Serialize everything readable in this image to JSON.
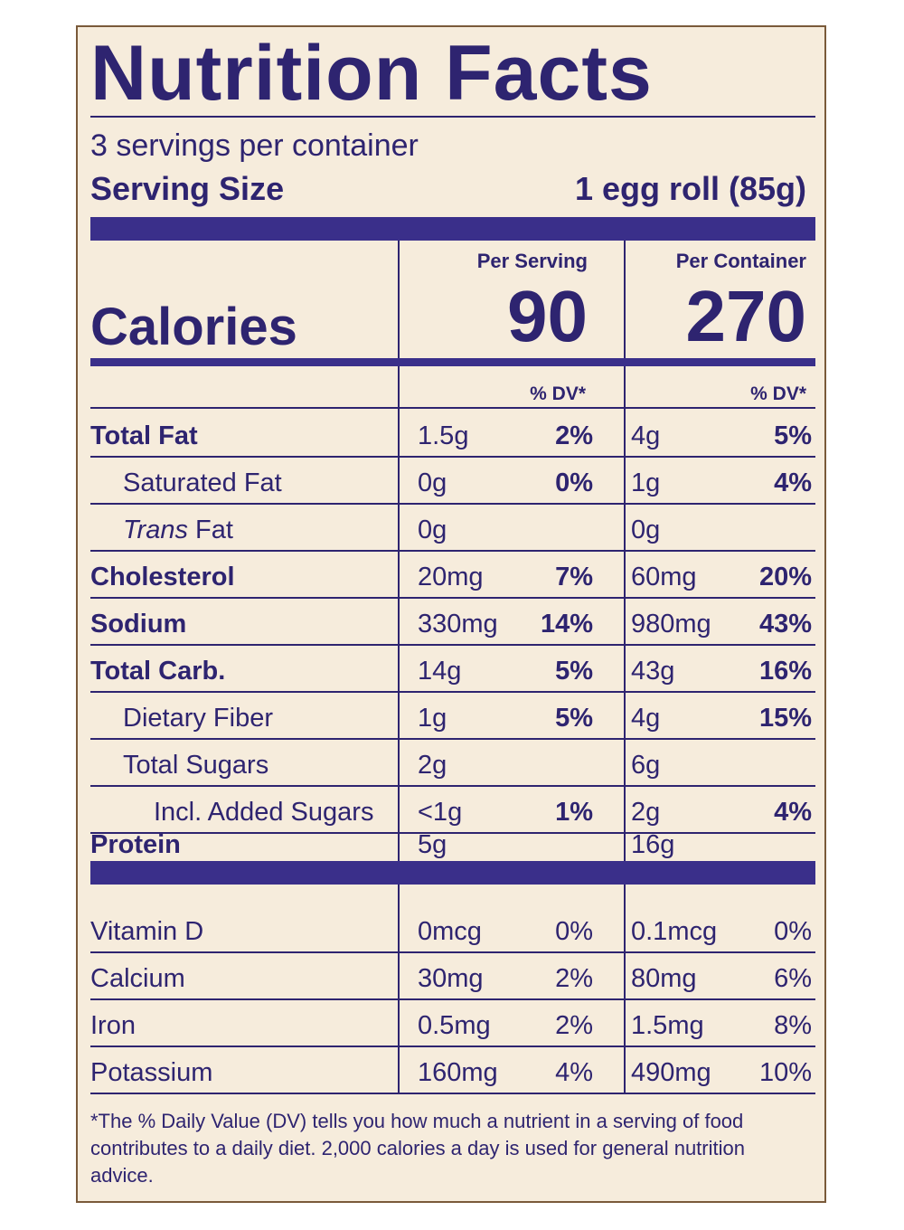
{
  "title": "Nutrition Facts",
  "servings_per_container": "3 servings per container",
  "serving_size": {
    "label": "Serving Size",
    "value": "1 egg roll (85g)"
  },
  "columns": {
    "per_serving": "Per Serving",
    "per_container": "Per Container"
  },
  "calories": {
    "label": "Calories",
    "per_serving": "90",
    "per_container": "270"
  },
  "dv_header": "% DV*",
  "nutrients": [
    {
      "name": "Total Fat",
      "amt1": "1.5g",
      "pct1": "2%",
      "amt2": "4g",
      "pct2": "5%"
    },
    {
      "name": "Saturated Fat",
      "amt1": "0g",
      "pct1": "0%",
      "amt2": "1g",
      "pct2": "4%"
    },
    {
      "name_italic": "Trans",
      "name": " Fat",
      "amt1": "0g",
      "pct1": "",
      "amt2": "0g",
      "pct2": ""
    },
    {
      "name": "Cholesterol",
      "amt1": "20mg",
      "pct1": "7%",
      "amt2": "60mg",
      "pct2": "20%"
    },
    {
      "name": "Sodium",
      "amt1": "330mg",
      "pct1": "14%",
      "amt2": "980mg",
      "pct2": "43%"
    },
    {
      "name": "Total Carb.",
      "amt1": "14g",
      "pct1": "5%",
      "amt2": "43g",
      "pct2": "16%"
    },
    {
      "name": "Dietary Fiber",
      "amt1": "1g",
      "pct1": "5%",
      "amt2": "4g",
      "pct2": "15%"
    },
    {
      "name": "Total Sugars",
      "amt1": "2g",
      "pct1": "",
      "amt2": "6g",
      "pct2": ""
    },
    {
      "name": "Incl. Added Sugars",
      "amt1": "<1g",
      "pct1": "1%",
      "amt2": "2g",
      "pct2": "4%"
    },
    {
      "name": "Protein",
      "amt1": "5g",
      "pct1": "",
      "amt2": "16g",
      "pct2": ""
    }
  ],
  "vitamins": [
    {
      "name": "Vitamin D",
      "amt1": "0mcg",
      "pct1": "0%",
      "amt2": "0.1mcg",
      "pct2": "0%"
    },
    {
      "name": "Calcium",
      "amt1": "30mg",
      "pct1": "2%",
      "amt2": "80mg",
      "pct2": "6%"
    },
    {
      "name": "Iron",
      "amt1": "0.5mg",
      "pct1": "2%",
      "amt2": "1.5mg",
      "pct2": "8%"
    },
    {
      "name": "Potassium",
      "amt1": "160mg",
      "pct1": "4%",
      "amt2": "490mg",
      "pct2": "10%"
    }
  ],
  "footnote": "*The % Daily Value (DV) tells you how much a nutrient in a serving of food contributes to a daily diet. 2,000 calories a day is used for general nutrition advice."
}
